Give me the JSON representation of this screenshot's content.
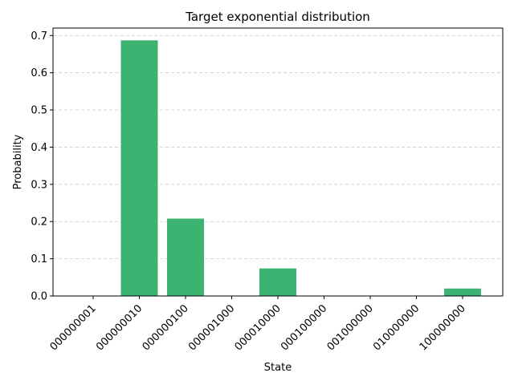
{
  "chart_data": {
    "type": "bar",
    "title": "Target exponential distribution",
    "xlabel": "State",
    "ylabel": "Probability",
    "categories": [
      "000000001",
      "000000010",
      "000000100",
      "000001000",
      "000010000",
      "000100000",
      "001000000",
      "010000000",
      "100000000"
    ],
    "values": [
      0.0,
      0.687,
      0.208,
      0.0,
      0.074,
      0.0,
      0.0,
      0.0,
      0.02
    ],
    "ylim": [
      0,
      0.72
    ],
    "yticks": [
      0.0,
      0.1,
      0.2,
      0.3,
      0.4,
      0.5,
      0.6,
      0.7
    ],
    "grid": "y-dashed",
    "bar_color": "#3cb371",
    "legend": "none"
  }
}
